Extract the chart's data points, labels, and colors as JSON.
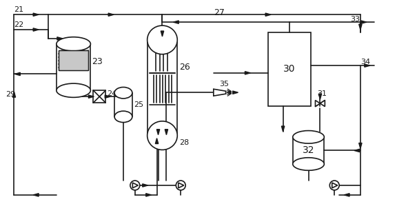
{
  "bg": "#ffffff",
  "lc": "#1a1a1a",
  "lw": 1.2,
  "figw": 5.76,
  "figh": 3.12,
  "dpi": 100
}
